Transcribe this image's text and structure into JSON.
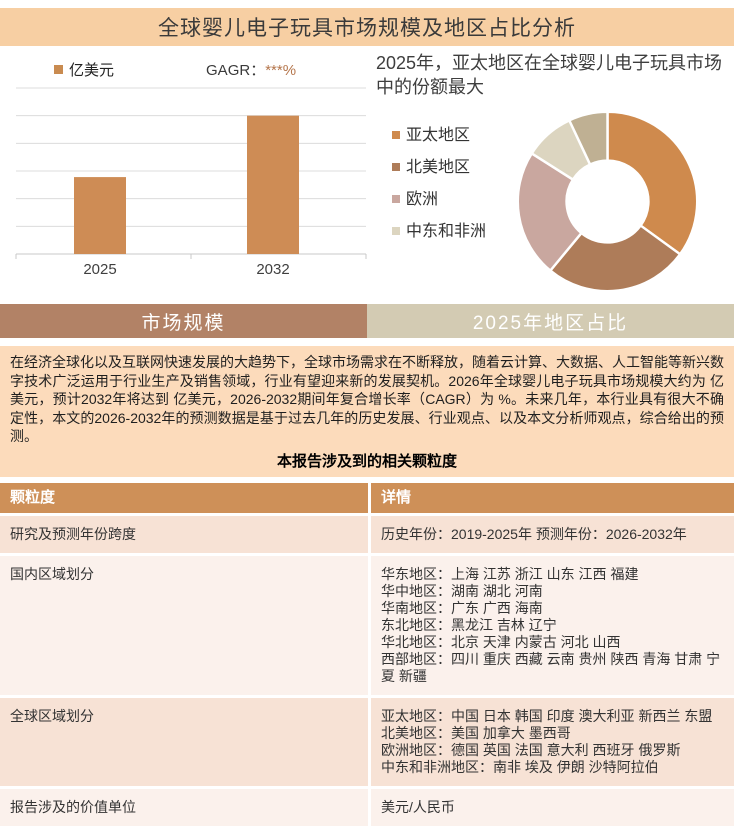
{
  "page": {
    "title": "全球婴儿电子玩具市场规模及地区占比分析"
  },
  "bar_section": {
    "legend_label": "亿美元",
    "cagr_label": "GAGR：",
    "cagr_value": "***%",
    "x_labels": [
      "2025",
      "2032"
    ]
  },
  "donut_section": {
    "title": "2025年，亚太地区在全球婴儿电子玩具市场中的份额最大",
    "legend": [
      "亚太地区",
      "北美地区",
      "欧洲",
      "中东和非洲"
    ]
  },
  "tabs": [
    {
      "label": "市场规模",
      "active": true
    },
    {
      "label": "2025年地区占比",
      "active": false
    }
  ],
  "summary": {
    "paragraph": "在经济全球化以及互联网快速发展的大趋势下，全球市场需求在不断释放，随着云计算、大数据、人工智能等新兴数字技术广泛运用于行业生产及销售领域，行业有望迎来新的发展契机。2026年全球婴儿电子玩具市场规模大约为 亿美元，预计2032年将达到 亿美元，2026-2032期间年复合增长率（CAGR）为 %。未来几年，本行业具有很大不确定性，本文的2026-2032年的预测数据是基于过去几年的历史发展、行业观点、以及本文分析师观点，综合给出的预测。",
    "table_heading": "本报告涉及到的相关颗粒度"
  },
  "table": {
    "headers": [
      "颗粒度",
      "详情"
    ],
    "rows": [
      {
        "label": "研究及预测年份跨度",
        "details": [
          "历史年份：2019-2025年 预测年份：2026-2032年"
        ]
      },
      {
        "label": "国内区域划分",
        "details": [
          "华东地区：上海  江苏  浙江  山东  江西  福建",
          "华中地区：湖南  湖北  河南",
          "华南地区：广东  广西  海南",
          "东北地区：黑龙江  吉林  辽宁",
          "华北地区：北京  天津  内蒙古  河北  山西",
          "西部地区：四川  重庆  西藏  云南  贵州  陕西  青海  甘肃  宁夏  新疆"
        ]
      },
      {
        "label": "全球区域划分",
        "details": [
          "亚太地区：中国  日本  韩国  印度  澳大利亚  新西兰  东盟",
          "北美地区：美国  加拿大  墨西哥",
          "欧洲地区：德国  英国  法国  意大利  西班牙  俄罗斯",
          "中东和非洲地区：南非  埃及  伊朗  沙特阿拉伯"
        ]
      },
      {
        "label": "报告涉及的价值单位",
        "details": [
          "美元/人民币"
        ]
      }
    ]
  },
  "colors": {
    "title_bar_bg": "#F7CFA3",
    "bar_fill": "#CE8C55",
    "gridline": "#DCDCDC",
    "axis": "#C9C9C9",
    "tab_active_bg": "#B28266",
    "tab_inactive_bg": "#D3CBB3",
    "content_bg": "#FCDBBB",
    "table_header_bg": "#CE9058",
    "row_odd_bg": "#F7E2D5",
    "row_even_bg": "#FBF1EC",
    "cagr_stars": "#B5764C"
  },
  "chart_data": [
    {
      "type": "bar",
      "title": "",
      "legend": [
        "亿美元"
      ],
      "annotation": "GAGR：***%",
      "categories": [
        "2025",
        "2032"
      ],
      "values": [
        2.78,
        5.0
      ],
      "ylim": [
        0,
        6
      ],
      "ytick_labels_visible": false,
      "grid": true,
      "bar_color": "#CE8C55",
      "note": "y-axis values are masked in the source report; values are in gridline units"
    },
    {
      "type": "pie",
      "donut": true,
      "title": "2025年，亚太地区在全球婴儿电子玩具市场中的份额最大",
      "labels": [
        "亚太地区",
        "北美地区",
        "欧洲",
        "中东和非洲",
        ""
      ],
      "values_pct": [
        35,
        26,
        23,
        9,
        7
      ],
      "colors": [
        "#CF8A4D",
        "#AE7C59",
        "#C9A79F",
        "#DCD5C0",
        "#BFB093"
      ],
      "legend_position": "left"
    }
  ]
}
